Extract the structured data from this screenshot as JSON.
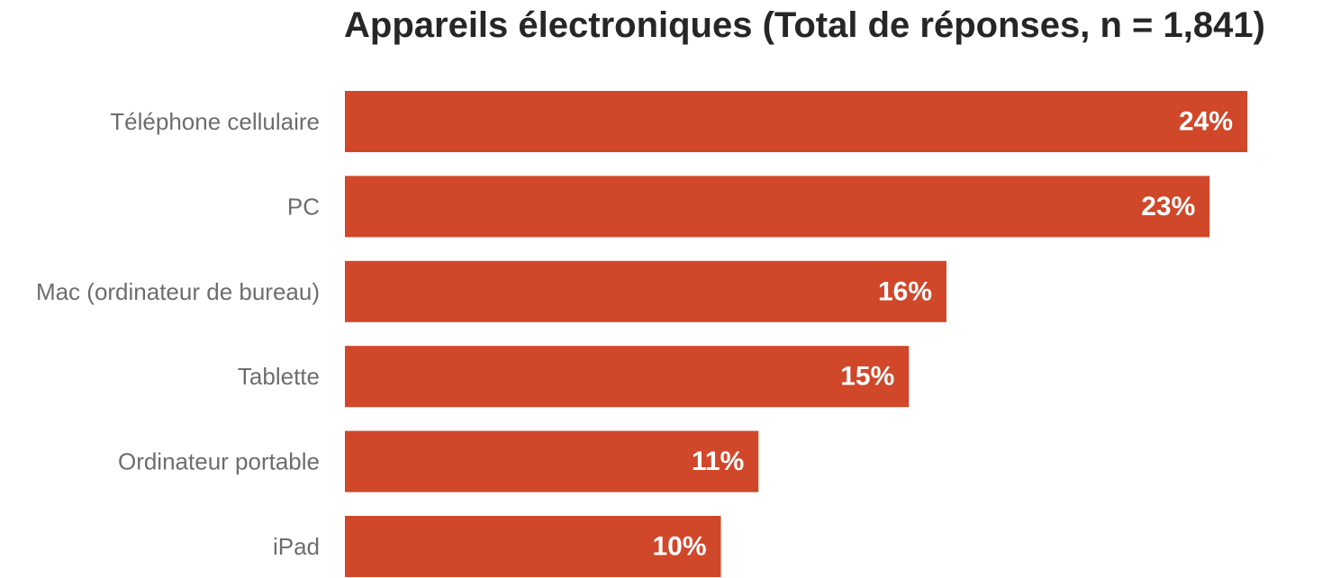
{
  "chart_data": {
    "type": "bar",
    "orientation": "horizontal",
    "title": "Appareils électroniques (Total de réponses, n = 1,841)",
    "categories": [
      "Téléphone cellulaire",
      "PC",
      "Mac (ordinateur de bureau)",
      "Tablette",
      "Ordinateur portable",
      "iPad"
    ],
    "values": [
      24,
      23,
      16,
      15,
      11,
      10
    ],
    "value_labels": [
      "24%",
      "23%",
      "16%",
      "15%",
      "11%",
      "10%"
    ],
    "unit": "%",
    "xlim": [
      0,
      24
    ],
    "grid": false,
    "legend": "none",
    "colors": {
      "bar": "#d0472a",
      "value_text": "#ffffff",
      "category_text": "#6d6d6d",
      "title_text": "#262626"
    }
  }
}
